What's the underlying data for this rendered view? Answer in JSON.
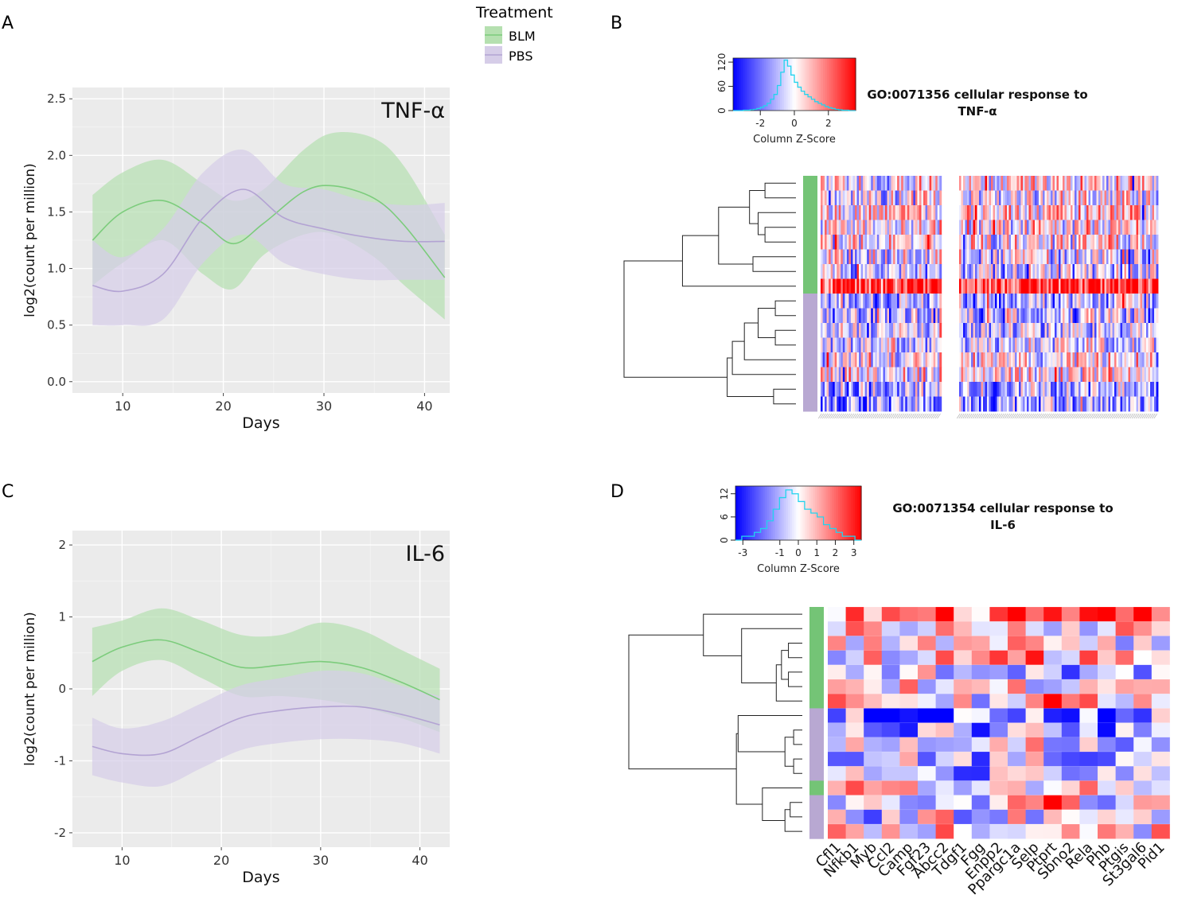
{
  "panel_labels": {
    "a": "A",
    "b": "B",
    "c": "C",
    "d": "D"
  },
  "legend": {
    "title": "Treatment",
    "items": [
      {
        "label": "BLM",
        "color": "#7ccc7c",
        "fill": "#b5e0b0"
      },
      {
        "label": "PBS",
        "color": "#b3a3d3",
        "fill": "#d6cde8"
      }
    ]
  },
  "chart_data": [
    {
      "id": "A",
      "type": "line",
      "annotation": "TNF-α",
      "xlabel": "Days",
      "ylabel": "log2(count per million)",
      "xlim": [
        5,
        42.5
      ],
      "ylim": [
        -0.1,
        2.6
      ],
      "xticks": [
        10,
        20,
        30,
        40
      ],
      "yticks": [
        0.0,
        0.5,
        1.0,
        1.5,
        2.0,
        2.5
      ],
      "ytick_labels": [
        "0.0",
        "0.5",
        "1.0",
        "1.5",
        "2.0",
        "2.5"
      ],
      "series": [
        {
          "name": "BLM",
          "x": [
            7,
            10,
            14,
            18,
            21,
            24,
            28,
            31,
            35,
            38,
            42
          ],
          "y": [
            1.25,
            1.5,
            1.6,
            1.4,
            1.22,
            1.4,
            1.68,
            1.73,
            1.62,
            1.38,
            0.92
          ],
          "lower": [
            0.85,
            1.05,
            1.25,
            0.95,
            0.82,
            1.12,
            1.3,
            1.3,
            1.1,
            0.85,
            0.55
          ],
          "upper": [
            1.65,
            1.85,
            1.96,
            1.75,
            1.6,
            1.7,
            2.05,
            2.2,
            2.15,
            1.9,
            1.3
          ]
        },
        {
          "name": "PBS",
          "x": [
            7,
            10,
            14,
            18,
            22,
            26,
            30,
            34,
            38,
            42
          ],
          "y": [
            0.85,
            0.8,
            0.95,
            1.45,
            1.7,
            1.45,
            1.35,
            1.28,
            1.24,
            1.24
          ],
          "lower": [
            0.5,
            0.5,
            0.55,
            1.05,
            1.3,
            1.05,
            0.95,
            0.9,
            0.9,
            0.9
          ],
          "upper": [
            1.25,
            1.1,
            1.35,
            1.85,
            2.05,
            1.75,
            1.7,
            1.6,
            1.56,
            1.58
          ]
        }
      ]
    },
    {
      "id": "C",
      "type": "line",
      "annotation": "IL-6",
      "xlabel": "Days",
      "ylabel": "log2(count per million)",
      "xlim": [
        5,
        43
      ],
      "ylim": [
        -2.2,
        2.2
      ],
      "xticks": [
        10,
        20,
        30,
        40
      ],
      "yticks": [
        -2,
        -1,
        0,
        1,
        2
      ],
      "ytick_labels": [
        "-2",
        "-1",
        "0",
        "1",
        "2"
      ],
      "series": [
        {
          "name": "BLM",
          "x": [
            7,
            10,
            14,
            18,
            22,
            26,
            30,
            34,
            38,
            42
          ],
          "y": [
            0.38,
            0.58,
            0.68,
            0.5,
            0.3,
            0.33,
            0.38,
            0.3,
            0.1,
            -0.15
          ],
          "lower": [
            -0.1,
            0.25,
            0.4,
            0.15,
            -0.1,
            -0.1,
            -0.15,
            -0.25,
            -0.4,
            -0.6
          ],
          "upper": [
            0.85,
            0.95,
            1.12,
            0.95,
            0.75,
            0.75,
            0.92,
            0.82,
            0.55,
            0.28
          ]
        },
        {
          "name": "PBS",
          "x": [
            7,
            10,
            14,
            18,
            22,
            26,
            30,
            34,
            38,
            42
          ],
          "y": [
            -0.8,
            -0.9,
            -0.9,
            -0.65,
            -0.4,
            -0.3,
            -0.25,
            -0.25,
            -0.35,
            -0.5
          ],
          "lower": [
            -1.2,
            -1.3,
            -1.35,
            -1.1,
            -0.85,
            -0.75,
            -0.7,
            -0.7,
            -0.75,
            -0.9
          ],
          "upper": [
            -0.4,
            -0.55,
            -0.45,
            -0.2,
            0.05,
            0.15,
            0.25,
            0.22,
            0.05,
            -0.1
          ]
        }
      ]
    },
    {
      "id": "B",
      "type": "heatmap",
      "title_line1": "GO:0071356 cellular response to",
      "title_line2": "TNF-α",
      "key_label": "Column Z-Score",
      "key_xticks": [
        -2,
        0,
        2
      ],
      "key_xtick_labels": [
        "-2",
        "0",
        "2"
      ],
      "key_yticks": [
        0,
        60,
        120
      ],
      "key_ytick_labels": [
        "0",
        "60",
        "120"
      ],
      "key_xrange": [
        -3.6,
        3.6
      ],
      "key_yrange": [
        0,
        130
      ],
      "key_hist": [
        0,
        0,
        0,
        1,
        1,
        2,
        3,
        5,
        8,
        12,
        18,
        28,
        40,
        62,
        95,
        125,
        110,
        88,
        70,
        58,
        48,
        40,
        34,
        28,
        22,
        18,
        14,
        10,
        7,
        5,
        3,
        2,
        1,
        1,
        0,
        0
      ],
      "rows": 16,
      "groups": [
        "BLM",
        "BLM",
        "BLM",
        "BLM",
        "BLM",
        "BLM",
        "BLM",
        "BLM",
        "PBS",
        "PBS",
        "PBS",
        "PBS",
        "PBS",
        "PBS",
        "PBS",
        "PBS"
      ],
      "left_columns": 60,
      "right_columns": 100,
      "seed": 7
    },
    {
      "id": "D",
      "type": "heatmap",
      "title_line1": "GO:0071354 cellular response to",
      "title_line2": "IL-6",
      "key_label": "Column Z-Score",
      "key_xticks": [
        -3,
        -1,
        0,
        1,
        2,
        3
      ],
      "key_xtick_labels": [
        "-3",
        "-1",
        "0",
        "1",
        "2",
        "3"
      ],
      "key_yticks": [
        0,
        6,
        12
      ],
      "key_ytick_labels": [
        "0",
        "6",
        "12"
      ],
      "key_xrange": [
        -3.4,
        3.4
      ],
      "key_yrange": [
        0,
        14
      ],
      "key_hist": [
        0,
        1,
        1,
        2,
        3,
        5,
        8,
        11,
        13,
        12,
        10,
        8,
        7,
        6,
        4,
        3,
        2,
        1,
        1,
        0
      ],
      "rows": 16,
      "groups": [
        "BLM",
        "BLM",
        "BLM",
        "BLM",
        "BLM",
        "BLM",
        "BLM",
        "PBS",
        "PBS",
        "PBS",
        "PBS",
        "PBS",
        "BLM",
        "PBS",
        "PBS",
        "PBS"
      ],
      "columns": [
        "Cfl1",
        "Nfkb1",
        "Myb",
        "Ccl2",
        "Camp",
        "Fgf23",
        "Abcc2",
        "Tdgf1",
        "Fgg",
        "Enpp2",
        "Ppargc1a",
        "Selp",
        "Ptprt",
        "Sbno2",
        "Rela",
        "Phb",
        "Ptgis",
        "St3gal6",
        "Pid1"
      ],
      "seed": 19
    }
  ]
}
